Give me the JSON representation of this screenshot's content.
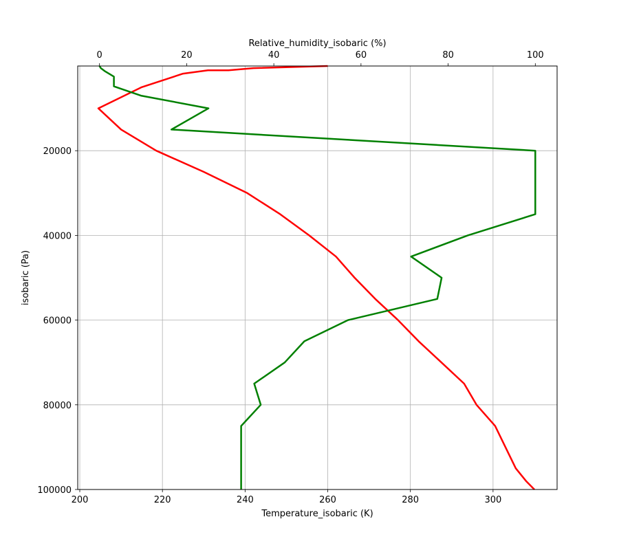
{
  "chart_data": {
    "type": "line",
    "y_axis": {
      "label": "isobaric (Pa)",
      "lim": [
        0,
        100000
      ],
      "inverted": true,
      "ticks": [
        20000,
        40000,
        60000,
        80000,
        100000
      ],
      "tick_labels": [
        "20000",
        "40000",
        "60000",
        "80000",
        "100000"
      ],
      "grid": true
    },
    "x_bottom": {
      "label": "Temperature_isobaric (K)",
      "lim": [
        199.5,
        315.5
      ],
      "ticks": [
        200,
        220,
        240,
        260,
        280,
        300
      ],
      "tick_labels": [
        "200",
        "220",
        "240",
        "260",
        "280",
        "300"
      ],
      "grid": true
    },
    "x_top": {
      "label": "Relative_humidity_isobaric (%)",
      "lim": [
        -5,
        105
      ],
      "ticks": [
        0,
        20,
        40,
        60,
        80,
        100
      ],
      "tick_labels": [
        "0",
        "20",
        "40",
        "60",
        "80",
        "100"
      ],
      "grid": false
    },
    "series": [
      {
        "axis": "bottom",
        "color": "#ff0000",
        "points": [
          {
            "x": 260,
            "y": 0
          },
          {
            "x": 242,
            "y": 500
          },
          {
            "x": 236,
            "y": 1000
          },
          {
            "x": 231,
            "y": 1000
          },
          {
            "x": 225,
            "y": 1800
          },
          {
            "x": 215,
            "y": 5000
          },
          {
            "x": 204.5,
            "y": 10000
          },
          {
            "x": 210,
            "y": 15000
          },
          {
            "x": 218.5,
            "y": 20000
          },
          {
            "x": 230,
            "y": 25000
          },
          {
            "x": 240.5,
            "y": 30000
          },
          {
            "x": 248.5,
            "y": 35000
          },
          {
            "x": 255.5,
            "y": 40000
          },
          {
            "x": 262,
            "y": 45000
          },
          {
            "x": 266.5,
            "y": 50000
          },
          {
            "x": 271.5,
            "y": 55000
          },
          {
            "x": 277,
            "y": 60000
          },
          {
            "x": 282,
            "y": 65000
          },
          {
            "x": 287.5,
            "y": 70000
          },
          {
            "x": 293,
            "y": 75000
          },
          {
            "x": 296,
            "y": 80000
          },
          {
            "x": 300.5,
            "y": 85000
          },
          {
            "x": 303,
            "y": 90000
          },
          {
            "x": 305.5,
            "y": 95000
          },
          {
            "x": 308,
            "y": 98000
          },
          {
            "x": 310,
            "y": 100000
          }
        ]
      },
      {
        "axis": "top",
        "color": "#008000",
        "points": [
          {
            "x": 0,
            "y": 0
          },
          {
            "x": 0.3,
            "y": 500
          },
          {
            "x": 1.2,
            "y": 1200
          },
          {
            "x": 3.3,
            "y": 2500
          },
          {
            "x": 3.3,
            "y": 4800
          },
          {
            "x": 9.5,
            "y": 7000
          },
          {
            "x": 25,
            "y": 10000
          },
          {
            "x": 16.5,
            "y": 15000
          },
          {
            "x": 100,
            "y": 20000
          },
          {
            "x": 100,
            "y": 25000
          },
          {
            "x": 100,
            "y": 30000
          },
          {
            "x": 100,
            "y": 35000
          },
          {
            "x": 84.5,
            "y": 40000
          },
          {
            "x": 71.5,
            "y": 45000
          },
          {
            "x": 78.5,
            "y": 50000
          },
          {
            "x": 77.5,
            "y": 55000
          },
          {
            "x": 57,
            "y": 60000
          },
          {
            "x": 47,
            "y": 65000
          },
          {
            "x": 42.5,
            "y": 70000
          },
          {
            "x": 35.5,
            "y": 75000
          },
          {
            "x": 37,
            "y": 80000
          },
          {
            "x": 32.5,
            "y": 85000
          },
          {
            "x": 32.5,
            "y": 90000
          },
          {
            "x": 32.5,
            "y": 95000
          },
          {
            "x": 32.5,
            "y": 100000
          }
        ]
      }
    ]
  }
}
